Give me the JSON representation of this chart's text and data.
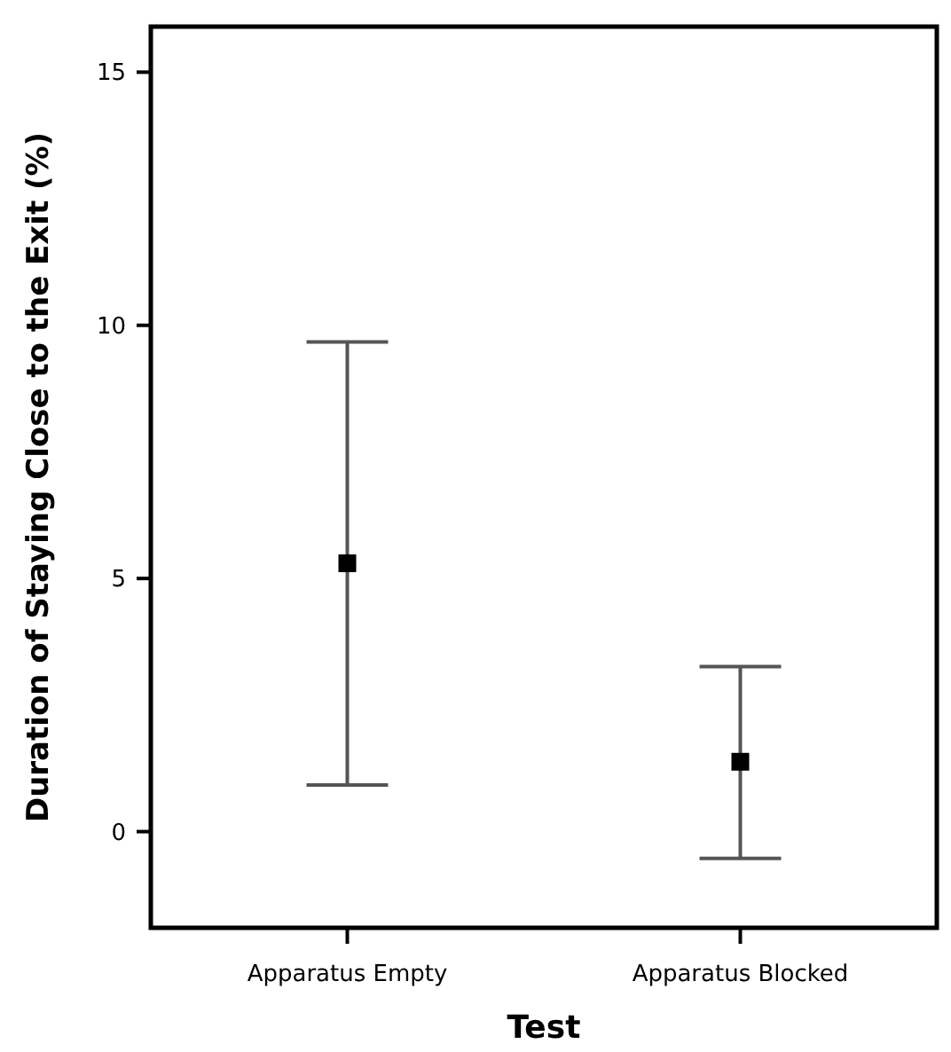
{
  "chart_data": {
    "type": "scatter",
    "xlabel": "Test",
    "ylabel": "Duration of Staying Close to the Exit (%)",
    "categories": [
      "Apparatus Empty",
      "Apparatus Blocked"
    ],
    "values": [
      5.3,
      1.38
    ],
    "errors": [
      [
        0.92,
        9.67
      ],
      [
        -0.53,
        3.26
      ]
    ],
    "color": "#000000",
    "marker": "square",
    "ylim": [
      -1.9,
      15.9
    ],
    "yticks": [
      0,
      5,
      10,
      15
    ],
    "grid": false
  }
}
